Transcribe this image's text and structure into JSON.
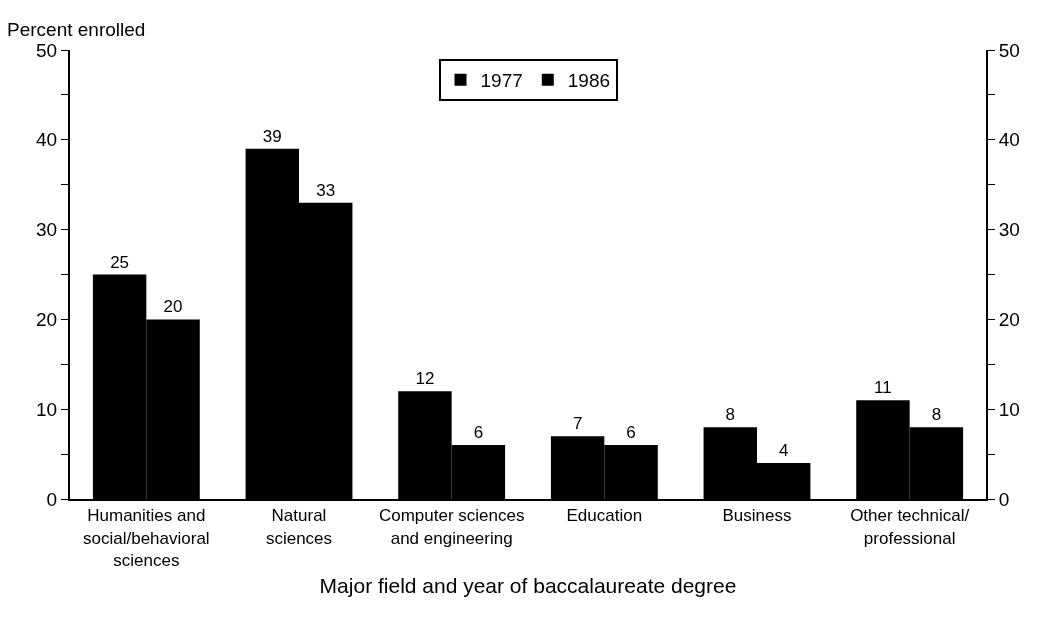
{
  "chart_data": {
    "type": "bar",
    "xlabel": "Major field and year of baccalaureate degree",
    "ylabel": "Percent enrolled",
    "categories": [
      "Humanities and\nsocial/behavioral\nsciences",
      "Natural\nsciences",
      "Computer sciences\nand engineering",
      "Education",
      "Business",
      "Other technical/\nprofessional"
    ],
    "series": [
      {
        "name": "1977",
        "color": "#000000",
        "values": [
          25,
          39,
          12,
          7,
          8,
          11
        ]
      },
      {
        "name": "1986",
        "color": "#000000",
        "values": [
          20,
          33,
          6,
          6,
          4,
          8
        ]
      }
    ],
    "ylim": [
      0,
      50
    ],
    "yticks": [
      0,
      {
        "value": 5,
        "label": null
      },
      10,
      {
        "value": 15,
        "label": null
      },
      20,
      {
        "value": 25,
        "label": null
      },
      30,
      {
        "value": 35,
        "label": null
      },
      40,
      {
        "value": 45,
        "label": null
      },
      50
    ],
    "y2lim": [
      0,
      50
    ],
    "y2ticks": [
      0,
      {
        "value": 5,
        "label": null
      },
      10,
      {
        "value": 15,
        "label": null
      },
      20,
      {
        "value": 25,
        "label": null
      },
      30,
      {
        "value": 35,
        "label": null
      },
      40,
      {
        "value": 45,
        "label": null
      },
      50
    ],
    "data_labels": true,
    "grid": false,
    "legend": "top"
  }
}
